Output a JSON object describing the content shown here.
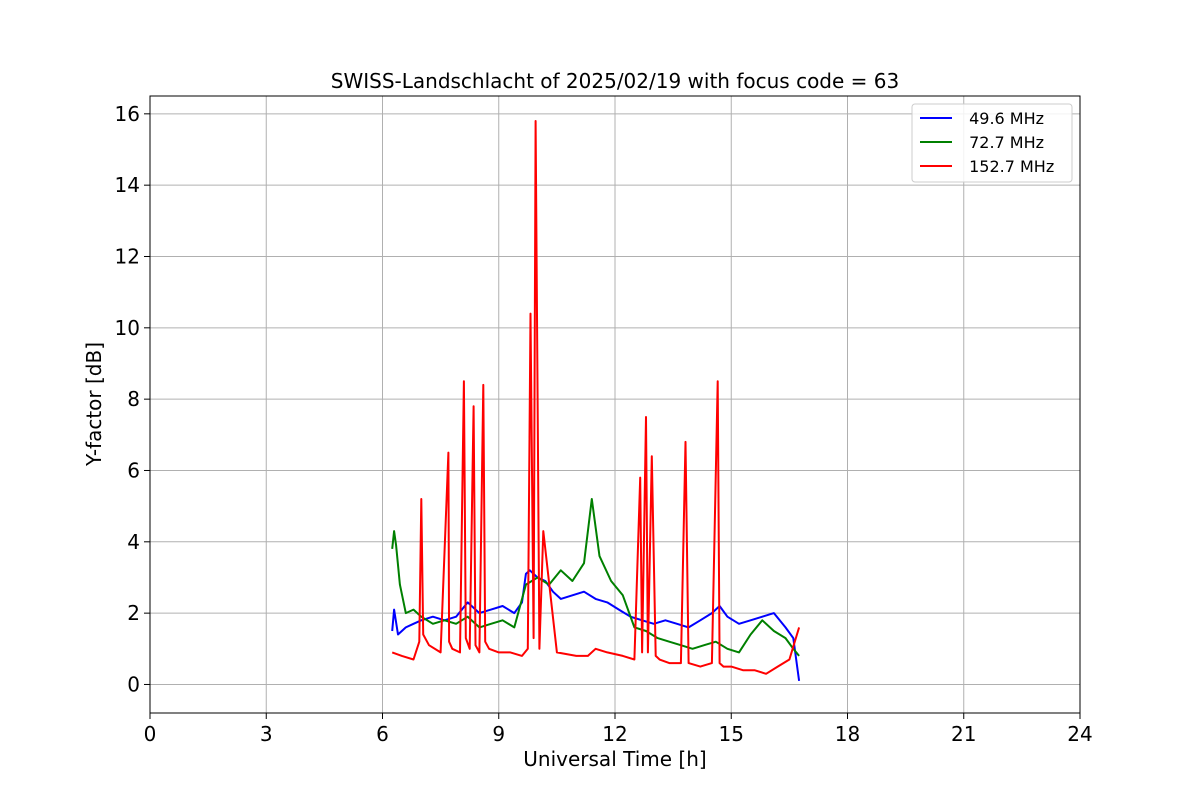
{
  "chart_data": {
    "type": "line",
    "title": "SWISS-Landschlacht of 2025/02/19 with focus code = 63",
    "xlabel": "Universal Time [h]",
    "ylabel": "Y-factor [dB]",
    "xlim": [
      0,
      24
    ],
    "ylim": [
      -0.8,
      16.5
    ],
    "xticks": [
      0,
      3,
      6,
      9,
      12,
      15,
      18,
      21,
      24
    ],
    "yticks": [
      0,
      2,
      4,
      6,
      8,
      10,
      12,
      14,
      16
    ],
    "grid": true,
    "legend_position": "top-right",
    "series": [
      {
        "name": " 49.6 MHz",
        "color": "#0000ff",
        "x": [
          6.25,
          6.3,
          6.4,
          6.6,
          6.8,
          7.0,
          7.3,
          7.6,
          7.9,
          8.2,
          8.5,
          8.8,
          9.1,
          9.4,
          9.6,
          9.7,
          9.8,
          10.0,
          10.2,
          10.4,
          10.6,
          10.9,
          11.2,
          11.5,
          11.8,
          12.1,
          12.4,
          12.7,
          13.0,
          13.3,
          13.6,
          13.9,
          14.2,
          14.5,
          14.7,
          14.9,
          15.2,
          15.5,
          15.8,
          16.1,
          16.4,
          16.6,
          16.75
        ],
        "y": [
          1.5,
          2.1,
          1.4,
          1.6,
          1.7,
          1.8,
          1.9,
          1.8,
          1.9,
          2.3,
          2.0,
          2.1,
          2.2,
          2.0,
          2.3,
          3.1,
          3.2,
          3.0,
          2.9,
          2.6,
          2.4,
          2.5,
          2.6,
          2.4,
          2.3,
          2.1,
          1.9,
          1.8,
          1.7,
          1.8,
          1.7,
          1.6,
          1.8,
          2.0,
          2.2,
          1.9,
          1.7,
          1.8,
          1.9,
          2.0,
          1.6,
          1.3,
          0.1
        ]
      },
      {
        "name": " 72.7 MHz",
        "color": "#008000",
        "x": [
          6.25,
          6.3,
          6.35,
          6.45,
          6.6,
          6.8,
          7.0,
          7.3,
          7.6,
          7.9,
          8.2,
          8.5,
          8.8,
          9.1,
          9.4,
          9.7,
          10.0,
          10.3,
          10.6,
          10.9,
          11.2,
          11.4,
          11.6,
          11.9,
          12.2,
          12.5,
          12.8,
          13.1,
          13.4,
          13.7,
          14.0,
          14.3,
          14.6,
          14.9,
          15.2,
          15.5,
          15.8,
          16.1,
          16.4,
          16.6,
          16.75
        ],
        "y": [
          3.8,
          4.3,
          3.9,
          2.8,
          2.0,
          2.1,
          1.9,
          1.7,
          1.8,
          1.7,
          1.9,
          1.6,
          1.7,
          1.8,
          1.6,
          2.8,
          3.0,
          2.8,
          3.2,
          2.9,
          3.4,
          5.2,
          3.6,
          2.9,
          2.5,
          1.6,
          1.5,
          1.3,
          1.2,
          1.1,
          1.0,
          1.1,
          1.2,
          1.0,
          0.9,
          1.4,
          1.8,
          1.5,
          1.3,
          1.0,
          0.8
        ]
      },
      {
        "name": " 152.7 MHz",
        "color": "#ff0000",
        "x": [
          6.25,
          6.5,
          6.8,
          6.95,
          7.0,
          7.05,
          7.2,
          7.5,
          7.7,
          7.72,
          7.8,
          8.0,
          8.1,
          8.15,
          8.25,
          8.35,
          8.4,
          8.5,
          8.6,
          8.65,
          8.75,
          9.0,
          9.3,
          9.6,
          9.75,
          9.82,
          9.9,
          9.95,
          10.05,
          10.15,
          10.5,
          11.0,
          11.3,
          11.5,
          11.8,
          12.2,
          12.5,
          12.65,
          12.7,
          12.8,
          12.85,
          12.95,
          13.05,
          13.15,
          13.4,
          13.7,
          13.82,
          13.9,
          14.2,
          14.5,
          14.65,
          14.7,
          14.8,
          15.0,
          15.3,
          15.6,
          15.9,
          16.2,
          16.5,
          16.75
        ],
        "y": [
          0.9,
          0.8,
          0.7,
          1.2,
          5.2,
          1.4,
          1.1,
          0.9,
          6.5,
          1.2,
          1.0,
          0.9,
          8.5,
          1.3,
          1.0,
          7.8,
          1.1,
          0.9,
          8.4,
          1.2,
          1.0,
          0.9,
          0.9,
          0.8,
          1.0,
          10.4,
          1.3,
          15.8,
          1.0,
          4.3,
          0.9,
          0.8,
          0.8,
          1.0,
          0.9,
          0.8,
          0.7,
          5.8,
          0.9,
          7.5,
          0.9,
          6.4,
          0.8,
          0.7,
          0.6,
          0.6,
          6.8,
          0.6,
          0.5,
          0.6,
          8.5,
          0.6,
          0.5,
          0.5,
          0.4,
          0.4,
          0.3,
          0.5,
          0.7,
          1.6
        ]
      }
    ]
  }
}
